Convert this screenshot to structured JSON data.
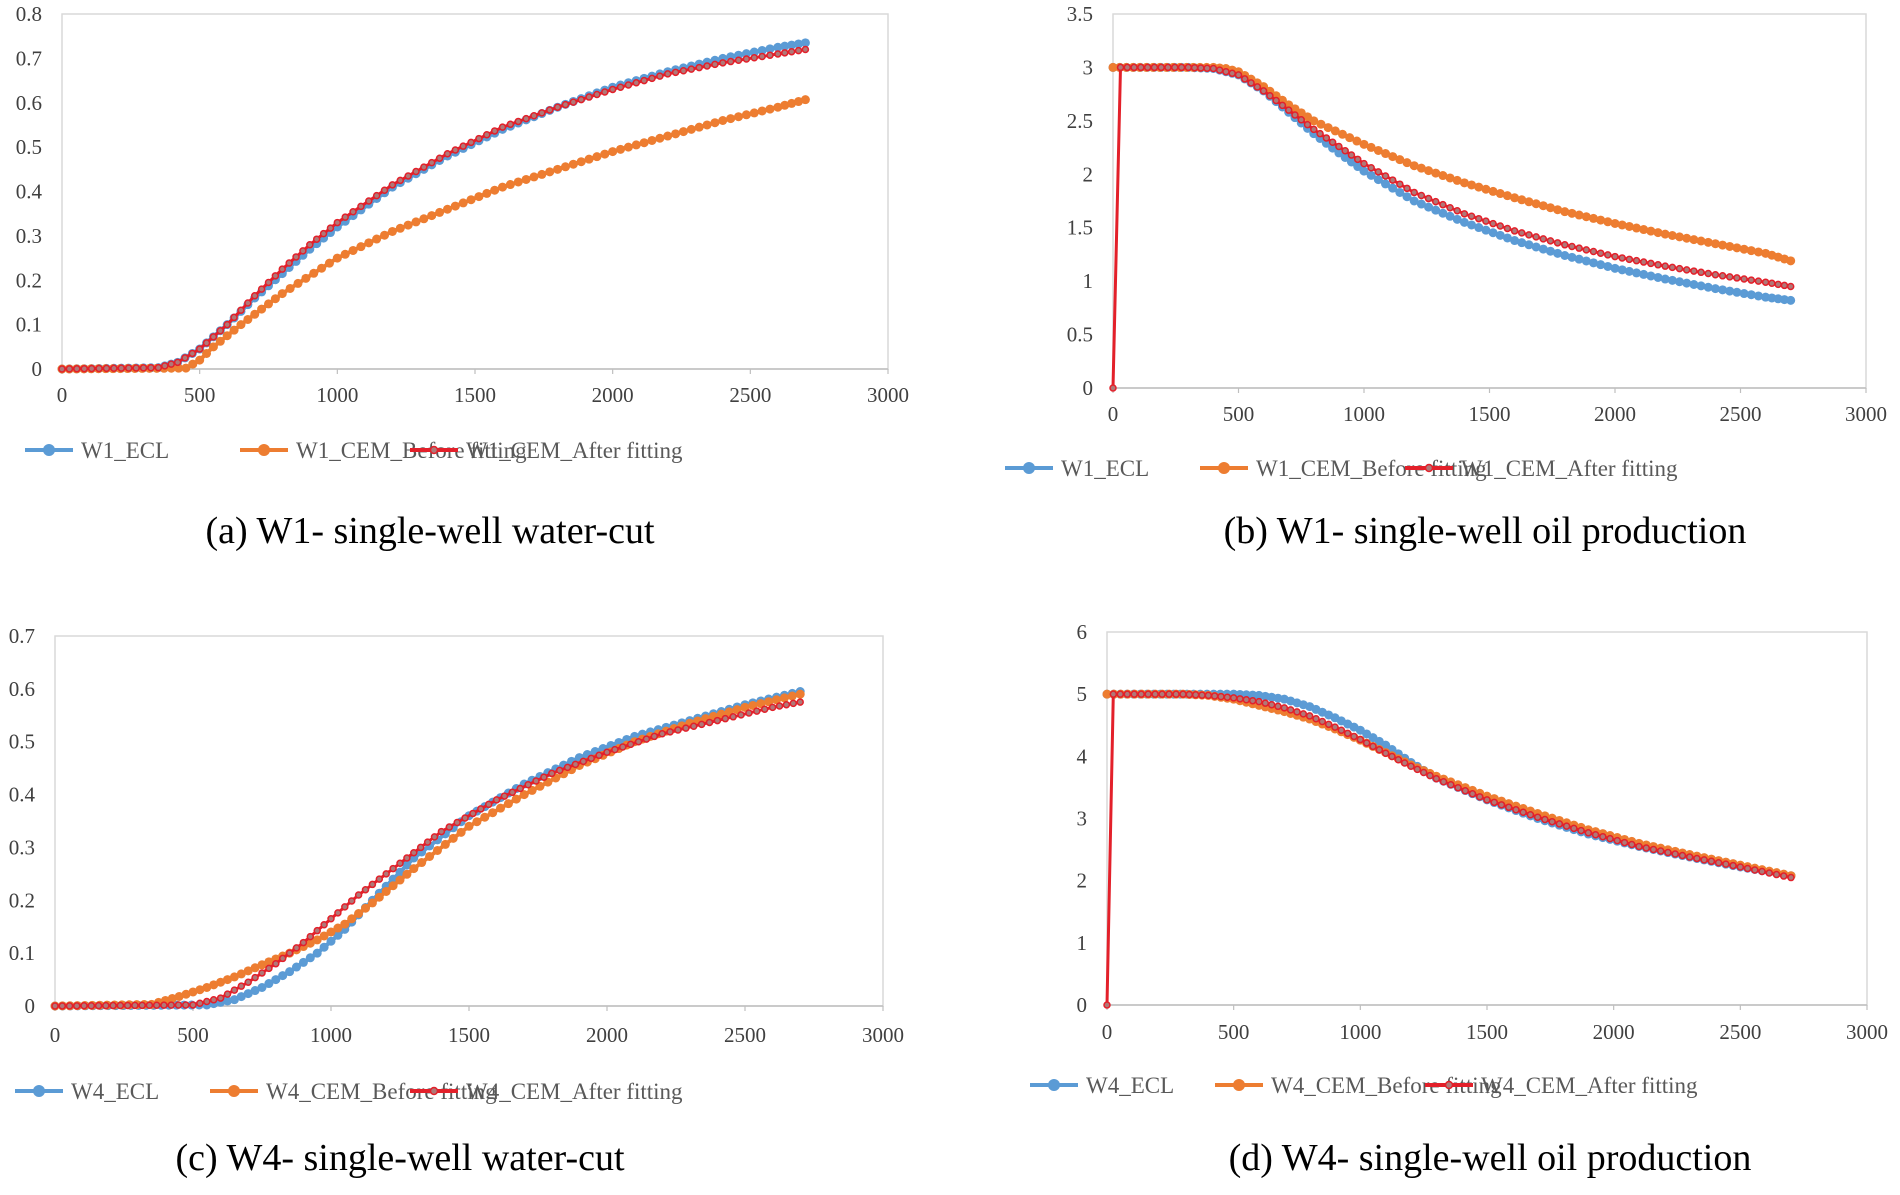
{
  "colors": {
    "ecl": "#5B9BD5",
    "before": "#ED7D31",
    "after": "#E3202A",
    "after_marker": "#B07878",
    "axis": "#D9D9D9"
  },
  "chart_data": [
    {
      "id": "a",
      "type": "line",
      "caption": "(a) W1- single-well water-cut",
      "xlim": [
        0,
        3000
      ],
      "ylim": [
        0,
        0.8
      ],
      "xticks": [
        "0",
        "500",
        "1000",
        "1500",
        "2000",
        "2500",
        "3000"
      ],
      "yticks": [
        "0",
        "0.1",
        "0.2",
        "0.3",
        "0.4",
        "0.5",
        "0.6",
        "0.7",
        "0.8"
      ],
      "legend_position": "bottom",
      "series": [
        {
          "name": "W1_ECL",
          "style": "ecl",
          "points": [
            [
              0,
              0
            ],
            [
              350,
              0.003
            ],
            [
              420,
              0.015
            ],
            [
              500,
              0.045
            ],
            [
              600,
              0.1
            ],
            [
              700,
              0.16
            ],
            [
              800,
              0.215
            ],
            [
              900,
              0.27
            ],
            [
              1000,
              0.32
            ],
            [
              1200,
              0.41
            ],
            [
              1400,
              0.48
            ],
            [
              1600,
              0.54
            ],
            [
              1800,
              0.59
            ],
            [
              2000,
              0.635
            ],
            [
              2200,
              0.67
            ],
            [
              2400,
              0.7
            ],
            [
              2600,
              0.725
            ],
            [
              2700,
              0.735
            ]
          ]
        },
        {
          "name": "W1_CEM_Before fitting",
          "style": "before",
          "points": [
            [
              0,
              0
            ],
            [
              450,
              0.002
            ],
            [
              500,
              0.02
            ],
            [
              550,
              0.05
            ],
            [
              650,
              0.1
            ],
            [
              800,
              0.17
            ],
            [
              1000,
              0.25
            ],
            [
              1200,
              0.31
            ],
            [
              1400,
              0.36
            ],
            [
              1600,
              0.41
            ],
            [
              1800,
              0.45
            ],
            [
              2000,
              0.49
            ],
            [
              2200,
              0.525
            ],
            [
              2400,
              0.56
            ],
            [
              2600,
              0.59
            ],
            [
              2700,
              0.607
            ]
          ]
        },
        {
          "name": "W1_CEM_After fitting",
          "style": "after",
          "points": [
            [
              0,
              0
            ],
            [
              350,
              0.003
            ],
            [
              420,
              0.015
            ],
            [
              500,
              0.045
            ],
            [
              600,
              0.1
            ],
            [
              700,
              0.165
            ],
            [
              800,
              0.225
            ],
            [
              900,
              0.28
            ],
            [
              1000,
              0.33
            ],
            [
              1200,
              0.415
            ],
            [
              1400,
              0.485
            ],
            [
              1600,
              0.545
            ],
            [
              1800,
              0.59
            ],
            [
              2000,
              0.63
            ],
            [
              2200,
              0.665
            ],
            [
              2400,
              0.69
            ],
            [
              2600,
              0.71
            ],
            [
              2700,
              0.72
            ]
          ]
        }
      ]
    },
    {
      "id": "b",
      "type": "line",
      "caption": "(b) W1- single-well oil production",
      "xlim": [
        0,
        3000
      ],
      "ylim": [
        0,
        3.5
      ],
      "xticks": [
        "0",
        "500",
        "1000",
        "1500",
        "2000",
        "2500",
        "3000"
      ],
      "yticks": [
        "0",
        "0.5",
        "1",
        "1.5",
        "2",
        "2.5",
        "3",
        "3.5"
      ],
      "legend_position": "bottom",
      "series": [
        {
          "name": "W1_ECL",
          "style": "ecl",
          "points": [
            [
              0,
              3
            ],
            [
              300,
              3
            ],
            [
              400,
              2.99
            ],
            [
              500,
              2.93
            ],
            [
              600,
              2.78
            ],
            [
              700,
              2.58
            ],
            [
              800,
              2.38
            ],
            [
              900,
              2.2
            ],
            [
              1000,
              2.03
            ],
            [
              1200,
              1.75
            ],
            [
              1400,
              1.55
            ],
            [
              1600,
              1.38
            ],
            [
              1800,
              1.24
            ],
            [
              2000,
              1.12
            ],
            [
              2200,
              1.02
            ],
            [
              2400,
              0.93
            ],
            [
              2600,
              0.85
            ],
            [
              2700,
              0.82
            ]
          ]
        },
        {
          "name": "W1_CEM_Before fitting",
          "style": "before",
          "points": [
            [
              0,
              3
            ],
            [
              400,
              3
            ],
            [
              450,
              2.99
            ],
            [
              500,
              2.96
            ],
            [
              600,
              2.82
            ],
            [
              700,
              2.65
            ],
            [
              800,
              2.5
            ],
            [
              1000,
              2.28
            ],
            [
              1200,
              2.08
            ],
            [
              1400,
              1.92
            ],
            [
              1600,
              1.78
            ],
            [
              1800,
              1.65
            ],
            [
              2000,
              1.54
            ],
            [
              2200,
              1.44
            ],
            [
              2400,
              1.35
            ],
            [
              2600,
              1.26
            ],
            [
              2700,
              1.19
            ]
          ]
        },
        {
          "name": "W1_CEM_After fitting",
          "style": "after",
          "points": [
            [
              0,
              0
            ],
            [
              30,
              3
            ],
            [
              300,
              3
            ],
            [
              400,
              2.99
            ],
            [
              500,
              2.93
            ],
            [
              600,
              2.78
            ],
            [
              700,
              2.6
            ],
            [
              800,
              2.42
            ],
            [
              900,
              2.26
            ],
            [
              1000,
              2.1
            ],
            [
              1200,
              1.83
            ],
            [
              1400,
              1.63
            ],
            [
              1600,
              1.47
            ],
            [
              1800,
              1.34
            ],
            [
              2000,
              1.23
            ],
            [
              2200,
              1.14
            ],
            [
              2400,
              1.06
            ],
            [
              2600,
              0.99
            ],
            [
              2700,
              0.95
            ]
          ]
        }
      ]
    },
    {
      "id": "c",
      "type": "line",
      "caption": "(c) W4- single-well water-cut",
      "xlim": [
        0,
        3000
      ],
      "ylim": [
        0,
        0.7
      ],
      "xticks": [
        "0",
        "500",
        "1000",
        "1500",
        "2000",
        "2500",
        "3000"
      ],
      "yticks": [
        "0",
        "0.1",
        "0.2",
        "0.3",
        "0.4",
        "0.5",
        "0.6",
        "0.7"
      ],
      "legend_position": "bottom",
      "series": [
        {
          "name": "W4_ECL",
          "style": "ecl",
          "points": [
            [
              0,
              0
            ],
            [
              550,
              0.002
            ],
            [
              650,
              0.012
            ],
            [
              750,
              0.035
            ],
            [
              850,
              0.065
            ],
            [
              950,
              0.1
            ],
            [
              1050,
              0.145
            ],
            [
              1150,
              0.2
            ],
            [
              1300,
              0.28
            ],
            [
              1500,
              0.36
            ],
            [
              1700,
              0.42
            ],
            [
              1900,
              0.47
            ],
            [
              2100,
              0.51
            ],
            [
              2300,
              0.54
            ],
            [
              2500,
              0.57
            ],
            [
              2700,
              0.595
            ]
          ]
        },
        {
          "name": "W4_CEM_Before fitting",
          "style": "before",
          "points": [
            [
              0,
              0
            ],
            [
              350,
              0.003
            ],
            [
              450,
              0.018
            ],
            [
              550,
              0.035
            ],
            [
              650,
              0.055
            ],
            [
              750,
              0.078
            ],
            [
              850,
              0.1
            ],
            [
              950,
              0.125
            ],
            [
              1050,
              0.155
            ],
            [
              1150,
              0.195
            ],
            [
              1300,
              0.26
            ],
            [
              1500,
              0.34
            ],
            [
              1700,
              0.4
            ],
            [
              1900,
              0.455
            ],
            [
              2100,
              0.5
            ],
            [
              2300,
              0.535
            ],
            [
              2500,
              0.565
            ],
            [
              2700,
              0.59
            ]
          ]
        },
        {
          "name": "W4_CEM_After fitting",
          "style": "after",
          "points": [
            [
              0,
              0
            ],
            [
              500,
              0.002
            ],
            [
              600,
              0.015
            ],
            [
              700,
              0.045
            ],
            [
              800,
              0.08
            ],
            [
              900,
              0.12
            ],
            [
              1000,
              0.165
            ],
            [
              1100,
              0.21
            ],
            [
              1250,
              0.27
            ],
            [
              1400,
              0.33
            ],
            [
              1600,
              0.39
            ],
            [
              1800,
              0.44
            ],
            [
              2000,
              0.48
            ],
            [
              2200,
              0.515
            ],
            [
              2400,
              0.54
            ],
            [
              2600,
              0.565
            ],
            [
              2700,
              0.575
            ]
          ]
        }
      ]
    },
    {
      "id": "d",
      "type": "line",
      "caption": "(d) W4- single-well oil production",
      "xlim": [
        0,
        3000
      ],
      "ylim": [
        0,
        6
      ],
      "xticks": [
        "0",
        "500",
        "1000",
        "1500",
        "2000",
        "2500",
        "3000"
      ],
      "yticks": [
        "0",
        "1",
        "2",
        "3",
        "4",
        "5",
        "6"
      ],
      "legend_position": "bottom",
      "series": [
        {
          "name": "W4_ECL",
          "style": "ecl",
          "points": [
            [
              0,
              5
            ],
            [
              500,
              5
            ],
            [
              600,
              4.98
            ],
            [
              700,
              4.92
            ],
            [
              800,
              4.8
            ],
            [
              900,
              4.62
            ],
            [
              1000,
              4.42
            ],
            [
              1100,
              4.18
            ],
            [
              1200,
              3.9
            ],
            [
              1300,
              3.65
            ],
            [
              1500,
              3.3
            ],
            [
              1700,
              3.0
            ],
            [
              1900,
              2.75
            ],
            [
              2100,
              2.55
            ],
            [
              2300,
              2.38
            ],
            [
              2500,
              2.22
            ],
            [
              2700,
              2.08
            ]
          ]
        },
        {
          "name": "W4_CEM_Before fitting",
          "style": "before",
          "points": [
            [
              0,
              5
            ],
            [
              300,
              5
            ],
            [
              400,
              4.98
            ],
            [
              500,
              4.92
            ],
            [
              600,
              4.82
            ],
            [
              700,
              4.72
            ],
            [
              800,
              4.6
            ],
            [
              900,
              4.44
            ],
            [
              1000,
              4.26
            ],
            [
              1100,
              4.06
            ],
            [
              1200,
              3.86
            ],
            [
              1300,
              3.68
            ],
            [
              1500,
              3.36
            ],
            [
              1700,
              3.08
            ],
            [
              1900,
              2.82
            ],
            [
              2100,
              2.6
            ],
            [
              2300,
              2.42
            ],
            [
              2500,
              2.25
            ],
            [
              2700,
              2.08
            ]
          ]
        },
        {
          "name": "W4_CEM_After fitting",
          "style": "after",
          "points": [
            [
              0,
              0
            ],
            [
              25,
              5
            ],
            [
              300,
              5
            ],
            [
              400,
              4.98
            ],
            [
              500,
              4.94
            ],
            [
              600,
              4.88
            ],
            [
              700,
              4.78
            ],
            [
              800,
              4.65
            ],
            [
              900,
              4.47
            ],
            [
              1000,
              4.27
            ],
            [
              1100,
              4.05
            ],
            [
              1200,
              3.84
            ],
            [
              1300,
              3.64
            ],
            [
              1500,
              3.3
            ],
            [
              1700,
              3.02
            ],
            [
              1900,
              2.77
            ],
            [
              2100,
              2.55
            ],
            [
              2300,
              2.38
            ],
            [
              2500,
              2.22
            ],
            [
              2700,
              2.05
            ]
          ]
        }
      ]
    }
  ]
}
